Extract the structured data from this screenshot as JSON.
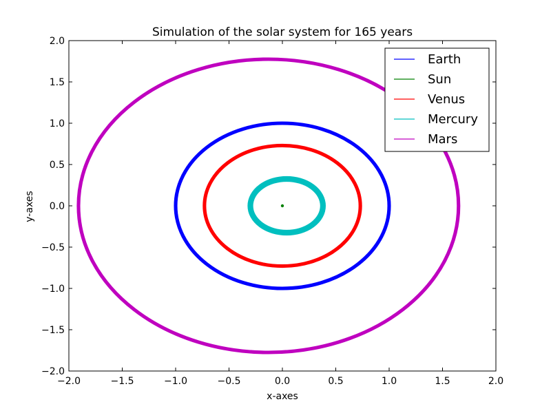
{
  "chart_data": {
    "type": "line",
    "title": "Simulation of the solar system for 165 years",
    "xlabel": "x-axes",
    "ylabel": "y-axes",
    "xlim": [
      -2.0,
      2.0
    ],
    "ylim": [
      -2.0,
      2.0
    ],
    "xticks": [
      -2.0,
      -1.5,
      -1.0,
      -0.5,
      0.0,
      0.5,
      1.0,
      1.5,
      2.0
    ],
    "yticks": [
      -2.0,
      -1.5,
      -1.0,
      -0.5,
      0.0,
      0.5,
      1.0,
      1.5,
      2.0
    ],
    "xtick_labels": [
      "−2.0",
      "−1.5",
      "−1.0",
      "−0.5",
      "0.0",
      "0.5",
      "1.0",
      "1.5",
      "2.0"
    ],
    "ytick_labels": [
      "−2.0",
      "−1.5",
      "−1.0",
      "−0.5",
      "0.0",
      "0.5",
      "1.0",
      "1.5",
      "2.0"
    ],
    "grid": false,
    "legend_position": "top-right",
    "series": [
      {
        "name": "Earth",
        "color": "#0000ff",
        "orbit": {
          "center": [
            0.0,
            0.0
          ],
          "rx": 1.0,
          "ry": 1.0,
          "width_band": 0.02
        }
      },
      {
        "name": "Sun",
        "color": "#008000",
        "orbit": {
          "center": [
            0.0,
            0.0
          ],
          "rx": 0.0,
          "ry": 0.0,
          "width_band": 0.0
        }
      },
      {
        "name": "Venus",
        "color": "#ff0000",
        "orbit": {
          "center": [
            0.0,
            0.0
          ],
          "rx": 0.73,
          "ry": 0.73,
          "width_band": 0.02
        }
      },
      {
        "name": "Mercury",
        "color": "#00bfbf",
        "orbit": {
          "center": [
            0.04,
            0.0
          ],
          "rx": 0.34,
          "ry": 0.325,
          "width_band": 0.04
        }
      },
      {
        "name": "Mars",
        "color": "#bf00bf",
        "orbit": {
          "center": [
            -0.13,
            0.0
          ],
          "rx": 1.78,
          "ry": 1.775,
          "width_band": 0.02
        }
      }
    ]
  }
}
